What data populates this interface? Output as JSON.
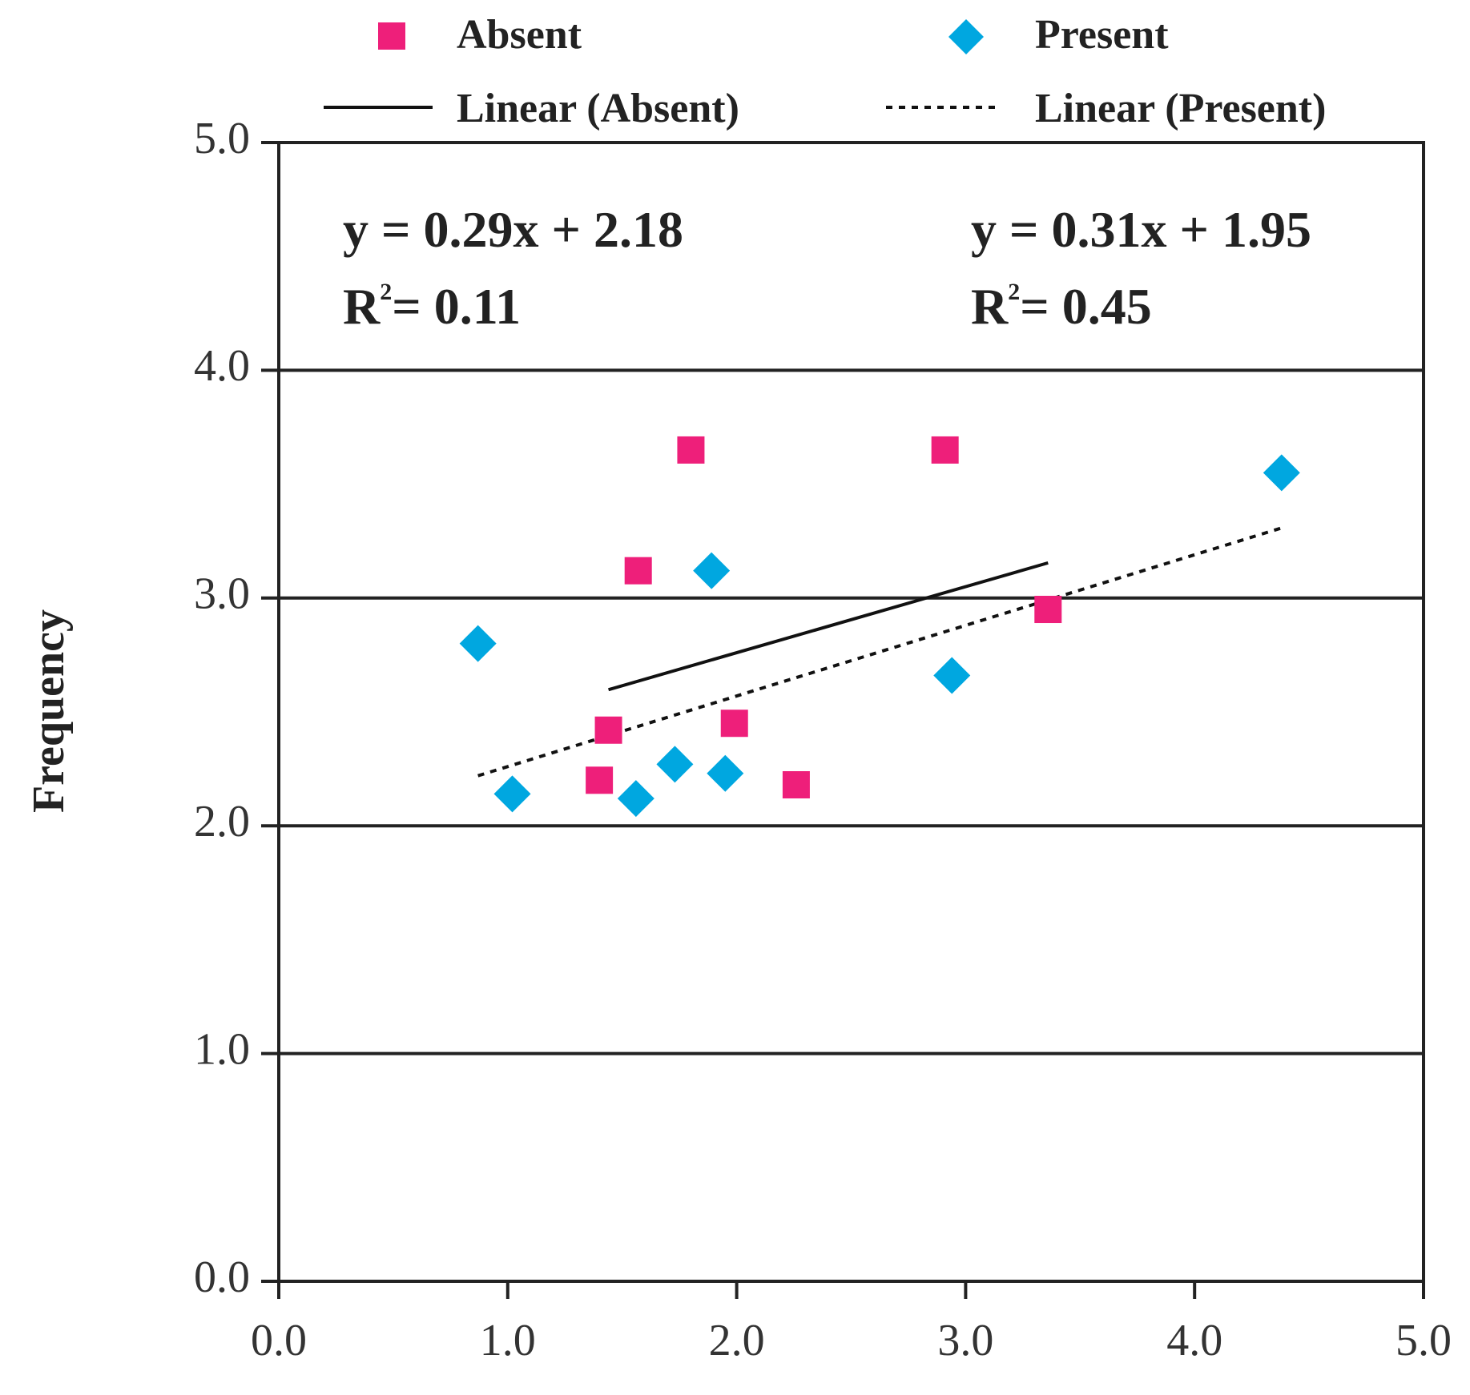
{
  "chart_data": {
    "type": "scatter",
    "title": "",
    "xlabel": "",
    "ylabel": "Frequency",
    "xlim": [
      0,
      5
    ],
    "ylim": [
      0,
      5
    ],
    "xticks": [
      "0.0",
      "1.0",
      "2.0",
      "3.0",
      "4.0",
      "5.0"
    ],
    "yticks": [
      "0.0",
      "1.0",
      "2.0",
      "3.0",
      "4.0",
      "5.0"
    ],
    "grid": "horizontal",
    "legend": {
      "placement": "top",
      "entries": {
        "absent": "Absent",
        "present": "Present",
        "linear_absent": "Linear (Absent)",
        "linear_present": "Linear (Present)"
      }
    },
    "series": [
      {
        "name": "Absent",
        "marker": "square",
        "color": "#EE1F7A",
        "points": [
          [
            1.4,
            2.2
          ],
          [
            1.44,
            2.42
          ],
          [
            1.57,
            3.12
          ],
          [
            1.8,
            3.65
          ],
          [
            1.99,
            2.45
          ],
          [
            2.26,
            2.18
          ],
          [
            2.91,
            3.65
          ],
          [
            3.36,
            2.95
          ]
        ],
        "trend": {
          "x_range": [
            1.44,
            3.36
          ],
          "slope": 0.29,
          "intercept": 2.18
        }
      },
      {
        "name": "Present",
        "marker": "diamond",
        "color": "#00A7E0",
        "points": [
          [
            0.87,
            2.8
          ],
          [
            1.02,
            2.14
          ],
          [
            1.56,
            2.12
          ],
          [
            1.73,
            2.27
          ],
          [
            1.89,
            3.12
          ],
          [
            1.95,
            2.23
          ],
          [
            2.94,
            2.66
          ],
          [
            4.38,
            3.55
          ]
        ],
        "trend": {
          "x_range": [
            0.87,
            4.38
          ],
          "slope": 0.31,
          "intercept": 1.95
        }
      }
    ],
    "annotations": {
      "absent_equation": "y = 0.29x + 2.18",
      "absent_r2_prefix": "R",
      "absent_r2_value": "= 0.11",
      "present_equation": "y = 0.31x + 1.95",
      "present_r2_prefix": "R",
      "present_r2_value": "= 0.45",
      "r2_superscript": "2"
    }
  }
}
